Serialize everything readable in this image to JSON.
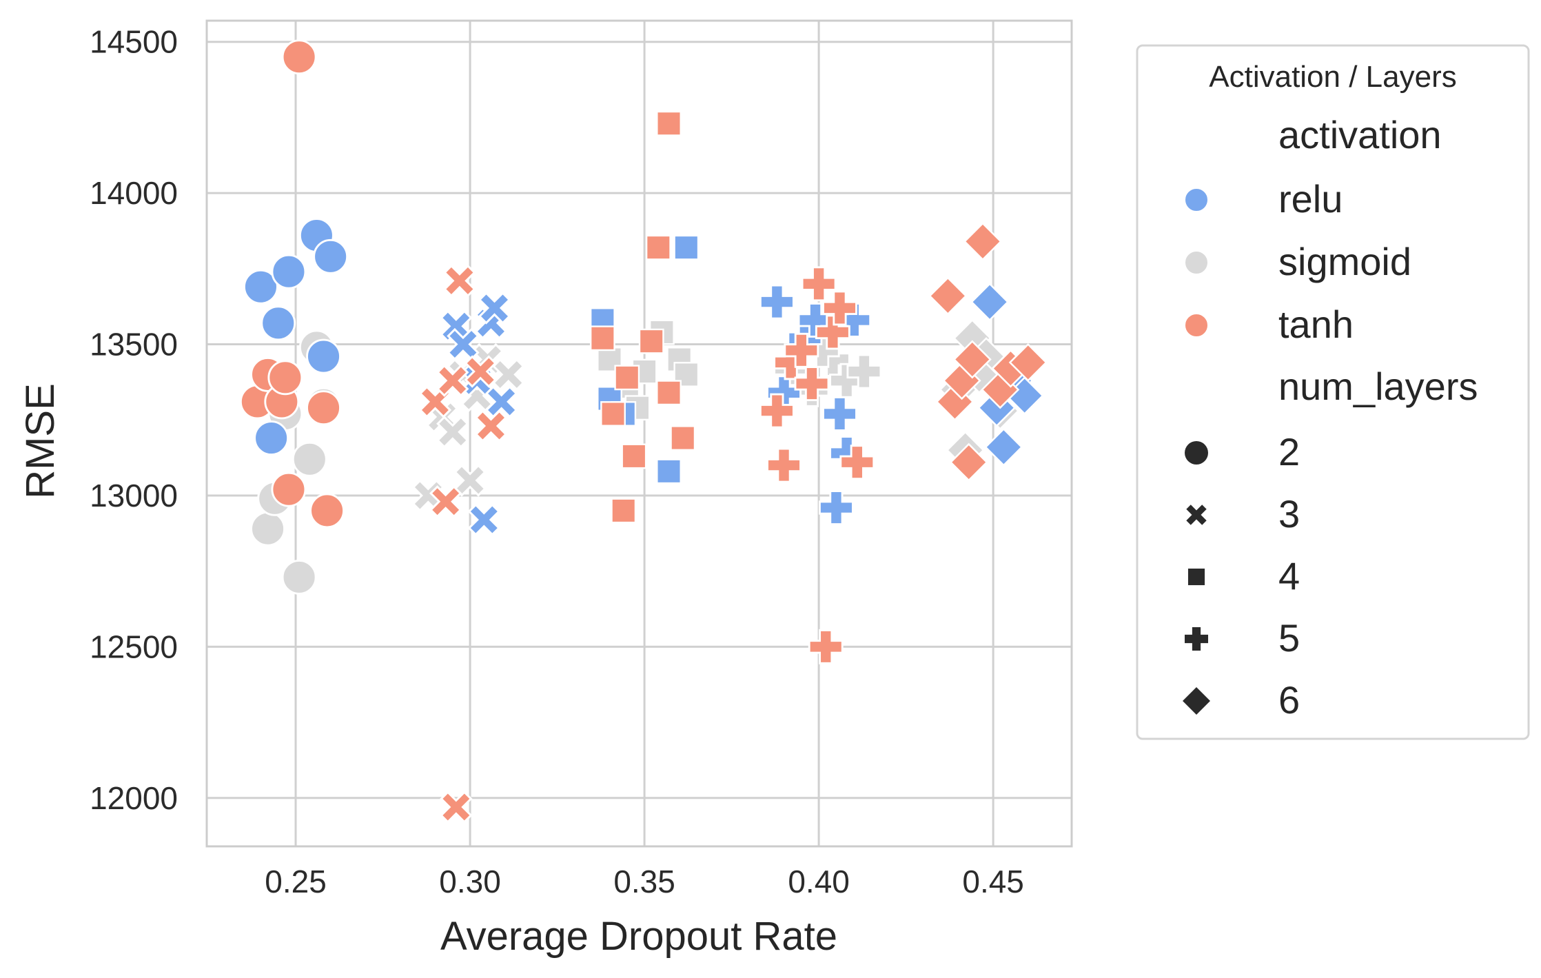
{
  "chart_data": {
    "type": "scatter",
    "title": "",
    "xlabel": "Average Dropout Rate",
    "ylabel": "RMSE",
    "xlim": [
      0.2245,
      0.4725
    ],
    "ylim": [
      11840,
      14570
    ],
    "xticks": [
      "0.25",
      "0.30",
      "0.35",
      "0.40",
      "0.45"
    ],
    "xtick_values": [
      0.25,
      0.3,
      0.35,
      0.4,
      0.45
    ],
    "yticks": [
      "12000",
      "12500",
      "13000",
      "13500",
      "14000",
      "14500"
    ],
    "ytick_values": [
      12000,
      12500,
      13000,
      13500,
      14000,
      14500
    ],
    "grid": true,
    "legend": {
      "title": "Activation / Layers",
      "placement": "outside-right",
      "hue_title": "activation",
      "hue_entries": [
        "relu",
        "sigmoid",
        "tanh"
      ],
      "style_title": "num_layers",
      "style_entries": [
        "2",
        "3",
        "4",
        "5",
        "6"
      ]
    },
    "colors": {
      "relu": "#78a7ee",
      "sigmoid": "#d9d9d9",
      "tanh": "#f5927a"
    },
    "marker_shapes": {
      "2": "circle",
      "3": "x",
      "4": "square",
      "5": "plus",
      "6": "diamond"
    },
    "series": [
      {
        "activation": "sigmoid",
        "num_layers": "2",
        "points": [
          [
            0.242,
            12890
          ],
          [
            0.244,
            12990
          ],
          [
            0.251,
            12730
          ],
          [
            0.254,
            13120
          ],
          [
            0.247,
            13270
          ],
          [
            0.256,
            13490
          ],
          [
            0.258,
            13300
          ]
        ]
      },
      {
        "activation": "sigmoid",
        "num_layers": "3",
        "points": [
          [
            0.288,
            13000
          ],
          [
            0.292,
            13260
          ],
          [
            0.298,
            13400
          ],
          [
            0.302,
            13330
          ],
          [
            0.305,
            13450
          ],
          [
            0.311,
            13400
          ],
          [
            0.295,
            13210
          ],
          [
            0.3,
            13050
          ]
        ]
      },
      {
        "activation": "sigmoid",
        "num_layers": "4",
        "points": [
          [
            0.34,
            13450
          ],
          [
            0.345,
            13360
          ],
          [
            0.35,
            13410
          ],
          [
            0.355,
            13540
          ],
          [
            0.36,
            13450
          ],
          [
            0.362,
            13400
          ],
          [
            0.348,
            13290
          ]
        ]
      },
      {
        "activation": "sigmoid",
        "num_layers": "5",
        "points": [
          [
            0.392,
            13420
          ],
          [
            0.398,
            13350
          ],
          [
            0.404,
            13450
          ],
          [
            0.408,
            13380
          ],
          [
            0.413,
            13410
          ],
          [
            0.401,
            13480
          ]
        ]
      },
      {
        "activation": "sigmoid",
        "num_layers": "6",
        "points": [
          [
            0.44,
            13350
          ],
          [
            0.444,
            13520
          ],
          [
            0.448,
            13460
          ],
          [
            0.452,
            13280
          ],
          [
            0.446,
            13400
          ],
          [
            0.442,
            13150
          ]
        ]
      },
      {
        "activation": "relu",
        "num_layers": "2",
        "points": [
          [
            0.24,
            13690
          ],
          [
            0.243,
            13190
          ],
          [
            0.245,
            13570
          ],
          [
            0.248,
            13740
          ],
          [
            0.256,
            13860
          ],
          [
            0.26,
            13790
          ],
          [
            0.258,
            13460
          ]
        ]
      },
      {
        "activation": "relu",
        "num_layers": "3",
        "points": [
          [
            0.296,
            13560
          ],
          [
            0.298,
            13500
          ],
          [
            0.302,
            13380
          ],
          [
            0.304,
            12920
          ],
          [
            0.306,
            13570
          ],
          [
            0.307,
            13620
          ],
          [
            0.309,
            13310
          ]
        ]
      },
      {
        "activation": "relu",
        "num_layers": "4",
        "points": [
          [
            0.338,
            13580
          ],
          [
            0.34,
            13320
          ],
          [
            0.344,
            13270
          ],
          [
            0.357,
            13080
          ],
          [
            0.362,
            13820
          ]
        ]
      },
      {
        "activation": "relu",
        "num_layers": "5",
        "points": [
          [
            0.388,
            13640
          ],
          [
            0.39,
            13340
          ],
          [
            0.396,
            13520
          ],
          [
            0.399,
            13580
          ],
          [
            0.405,
            12960
          ],
          [
            0.406,
            13270
          ],
          [
            0.408,
            13140
          ],
          [
            0.41,
            13580
          ]
        ]
      },
      {
        "activation": "relu",
        "num_layers": "6",
        "points": [
          [
            0.449,
            13640
          ],
          [
            0.451,
            13290
          ],
          [
            0.453,
            13160
          ],
          [
            0.456,
            13380
          ],
          [
            0.459,
            13330
          ]
        ]
      },
      {
        "activation": "tanh",
        "num_layers": "2",
        "points": [
          [
            0.239,
            13310
          ],
          [
            0.242,
            13400
          ],
          [
            0.246,
            13310
          ],
          [
            0.247,
            13390
          ],
          [
            0.248,
            13020
          ],
          [
            0.251,
            14450
          ],
          [
            0.258,
            13290
          ],
          [
            0.259,
            12950
          ]
        ]
      },
      {
        "activation": "tanh",
        "num_layers": "3",
        "points": [
          [
            0.29,
            13310
          ],
          [
            0.293,
            12980
          ],
          [
            0.295,
            13380
          ],
          [
            0.296,
            11970
          ],
          [
            0.297,
            13710
          ],
          [
            0.303,
            13410
          ],
          [
            0.306,
            13230
          ]
        ]
      },
      {
        "activation": "tanh",
        "num_layers": "4",
        "points": [
          [
            0.338,
            13520
          ],
          [
            0.341,
            13270
          ],
          [
            0.344,
            12950
          ],
          [
            0.345,
            13390
          ],
          [
            0.347,
            13130
          ],
          [
            0.352,
            13510
          ],
          [
            0.354,
            13820
          ],
          [
            0.357,
            13340
          ],
          [
            0.357,
            14230
          ],
          [
            0.361,
            13190
          ]
        ]
      },
      {
        "activation": "tanh",
        "num_layers": "5",
        "points": [
          [
            0.388,
            13280
          ],
          [
            0.39,
            13100
          ],
          [
            0.392,
            13440
          ],
          [
            0.395,
            13480
          ],
          [
            0.398,
            13370
          ],
          [
            0.4,
            13700
          ],
          [
            0.402,
            12500
          ],
          [
            0.404,
            13540
          ],
          [
            0.406,
            13620
          ],
          [
            0.411,
            13110
          ]
        ]
      },
      {
        "activation": "tanh",
        "num_layers": "6",
        "points": [
          [
            0.437,
            13660
          ],
          [
            0.439,
            13310
          ],
          [
            0.441,
            13380
          ],
          [
            0.443,
            13110
          ],
          [
            0.444,
            13450
          ],
          [
            0.447,
            13840
          ],
          [
            0.452,
            13350
          ],
          [
            0.455,
            13420
          ],
          [
            0.46,
            13440
          ]
        ]
      }
    ]
  }
}
